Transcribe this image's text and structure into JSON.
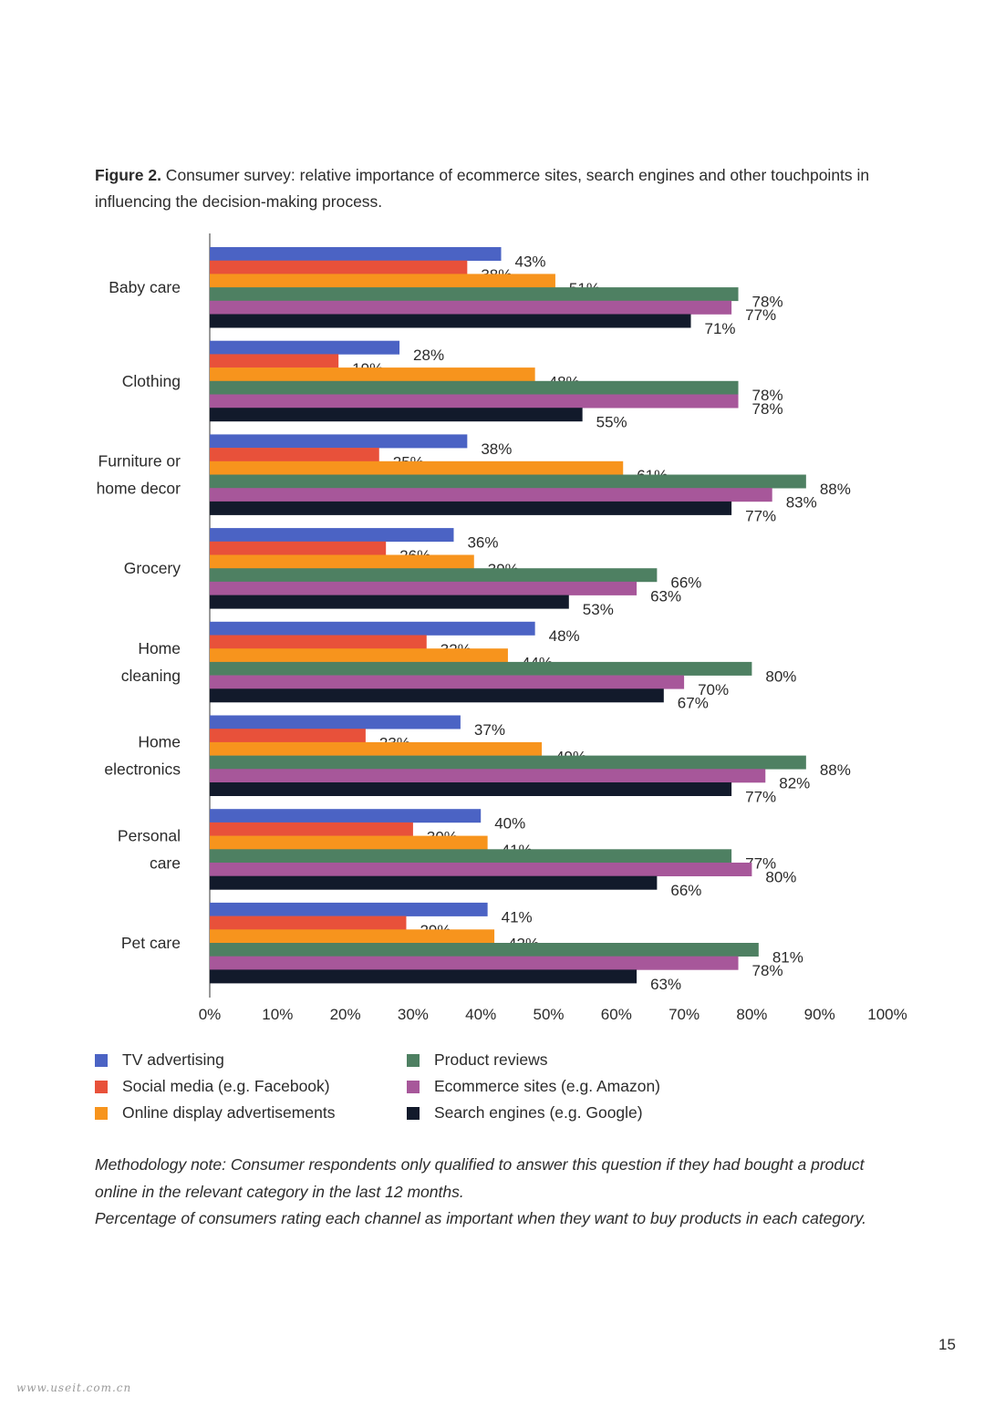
{
  "caption": {
    "label": "Figure 2.",
    "text": " Consumer survey: relative importance of ecommerce sites, search engines and other touchpoints in influencing the decision-making process."
  },
  "chart_data": {
    "type": "bar",
    "orientation": "horizontal",
    "categories": [
      [
        "Baby care"
      ],
      [
        "Clothing"
      ],
      [
        "Furniture or",
        "home decor"
      ],
      [
        "Grocery"
      ],
      [
        "Home",
        "cleaning"
      ],
      [
        "Home",
        "electronics"
      ],
      [
        "Personal",
        "care"
      ],
      [
        "Pet care"
      ]
    ],
    "series": [
      {
        "name": "TV advertising",
        "color": "#4b63c4",
        "values": [
          43,
          28,
          38,
          36,
          48,
          37,
          40,
          41
        ]
      },
      {
        "name": "Social media (e.g. Facebook)",
        "color": "#e8513a",
        "values": [
          38,
          19,
          25,
          26,
          32,
          23,
          30,
          29
        ]
      },
      {
        "name": "Online display advertisements",
        "color": "#f7941d",
        "values": [
          51,
          48,
          61,
          39,
          44,
          49,
          41,
          42
        ]
      },
      {
        "name": "Product reviews",
        "color": "#4e8062",
        "values": [
          78,
          78,
          88,
          66,
          80,
          88,
          77,
          81
        ]
      },
      {
        "name": "Ecommerce sites (e.g. Amazon)",
        "color": "#a7579a",
        "values": [
          77,
          78,
          83,
          63,
          70,
          82,
          80,
          78
        ]
      },
      {
        "name": "Search engines (e.g. Google)",
        "color": "#121a2b",
        "values": [
          71,
          55,
          77,
          53,
          67,
          77,
          66,
          63
        ]
      }
    ],
    "xlim": [
      0,
      100
    ],
    "xticks": [
      "0%",
      "10%",
      "20%",
      "30%",
      "40%",
      "50%",
      "60%",
      "70%",
      "80%",
      "90%",
      "100%"
    ],
    "data_labels": true,
    "value_suffix": "%",
    "grid": false,
    "legend_position": "bottom"
  },
  "legend": {
    "left": [
      {
        "label": "TV advertising",
        "color": "#4b63c4"
      },
      {
        "label": "Social media (e.g. Facebook)",
        "color": "#e8513a"
      },
      {
        "label": "Online display advertisements",
        "color": "#f7941d"
      }
    ],
    "right": [
      {
        "label": "Product reviews",
        "color": "#4e8062"
      },
      {
        "label": "Ecommerce sites (e.g. Amazon)",
        "color": "#a7579a"
      },
      {
        "label": "Search engines (e.g. Google)",
        "color": "#121a2b"
      }
    ]
  },
  "note": {
    "line1": "Methodology note: Consumer respondents only qualified to answer this question if they had bought a product",
    "line2": "online in the relevant category in the last 12 months.",
    "line3": "Percentage of consumers rating each channel as important when they want to buy products in  each category."
  },
  "page_number": "15",
  "watermark": "www.useit.com.cn"
}
